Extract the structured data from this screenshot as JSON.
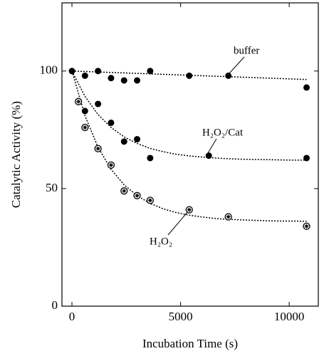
{
  "chart_data": {
    "type": "scatter",
    "xlabel": "Incubation Time (s)",
    "ylabel": "Catalytic Activity (%)",
    "xlim": [
      -460,
      11340
    ],
    "ylim": [
      0,
      129
    ],
    "xticks": [
      0,
      5000,
      10000
    ],
    "yticks": [
      0,
      50,
      100
    ],
    "fit_x": [
      0,
      600,
      1200,
      1800,
      2400,
      3000,
      3600,
      4200,
      4800,
      5400,
      6000,
      6600,
      7200,
      7800,
      8400,
      9000,
      9600,
      10200,
      10800
    ],
    "series": [
      {
        "name": "buffer",
        "marker": "filled",
        "color": "#000000",
        "x": [
          0,
          600,
          1200,
          1800,
          2400,
          3000,
          3600,
          5400,
          7200,
          10800
        ],
        "values": [
          100,
          98,
          100,
          97,
          96,
          96,
          100,
          98,
          98,
          93
        ],
        "fit_values": [
          100,
          99.8,
          99.6,
          99.4,
          99.2,
          99,
          98.8,
          98.6,
          98.4,
          98.2,
          98,
          97.8,
          97.6,
          97.4,
          97.2,
          97,
          96.8,
          96.6,
          96.4
        ]
      },
      {
        "name": "H₂O₂/Cat",
        "marker": "filled",
        "color": "#000000",
        "x": [
          600,
          1200,
          1800,
          2400,
          3000,
          3600,
          6300,
          10800
        ],
        "values": [
          83,
          86,
          78,
          70,
          71,
          63,
          64,
          63
        ],
        "fit_values": [
          100,
          89.2,
          81.5,
          76,
          72,
          69.2,
          67.1,
          65.7,
          64.6,
          63.9,
          63.4,
          63,
          62.7,
          62.5,
          62.4,
          62.3,
          62.2,
          62.1,
          62.1
        ]
      },
      {
        "name": "H₂O₂",
        "marker": "open",
        "color": "#000000",
        "x": [
          300,
          600,
          1200,
          1800,
          2400,
          3000,
          3600,
          5400,
          7200,
          10800
        ],
        "values": [
          87,
          76,
          67,
          60,
          49,
          47,
          45,
          41,
          38,
          34
        ],
        "fit_values": [
          100,
          81,
          67.6,
          58.2,
          51.6,
          47,
          43.7,
          41.4,
          39.8,
          38.7,
          37.9,
          37.3,
          36.9,
          36.7,
          36.5,
          36.3,
          36.2,
          36.2,
          36.1
        ]
      }
    ]
  }
}
